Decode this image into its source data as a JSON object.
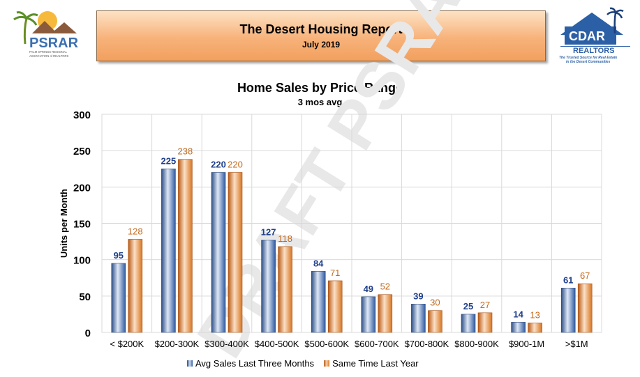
{
  "header": {
    "title": "The Desert Housing Report",
    "date": "July 2019"
  },
  "logos": {
    "left_text": "PSRAR",
    "left_tagline": "PALM SPRINGS REGIONAL ASSOCIATION of REALTORS",
    "right_text": "CDAR",
    "right_subtext": "REALTORS",
    "right_tagline": "The Trusted Source for Real Estate in the Desert Communities"
  },
  "watermark": "DRAFT PSRAR",
  "chart_data": {
    "type": "bar",
    "title": "Home Sales by Price Range",
    "subtitle": "3 mos avg",
    "ylabel": "Units per Month",
    "xlabel": "",
    "ylim": [
      0,
      300
    ],
    "yticks": [
      0,
      50,
      100,
      150,
      200,
      250,
      300
    ],
    "grid": true,
    "legend_position": "bottom",
    "categories": [
      "< $200K",
      "$200-300K",
      "$300-400K",
      "$400-500K",
      "$500-600K",
      "$600-700K",
      "$700-800K",
      "$800-900K",
      "$900-1M",
      ">$1M"
    ],
    "series": [
      {
        "name": "Avg Sales Last Three Months",
        "color": "#3f6db3",
        "label_color": "#1f3f8a",
        "values": [
          95,
          225,
          220,
          127,
          84,
          49,
          39,
          25,
          14,
          61
        ]
      },
      {
        "name": "Same Time Last Year",
        "color": "#e0782c",
        "label_color": "#c46a1d",
        "values": [
          128,
          238,
          220,
          118,
          71,
          52,
          30,
          27,
          13,
          67
        ]
      }
    ]
  }
}
